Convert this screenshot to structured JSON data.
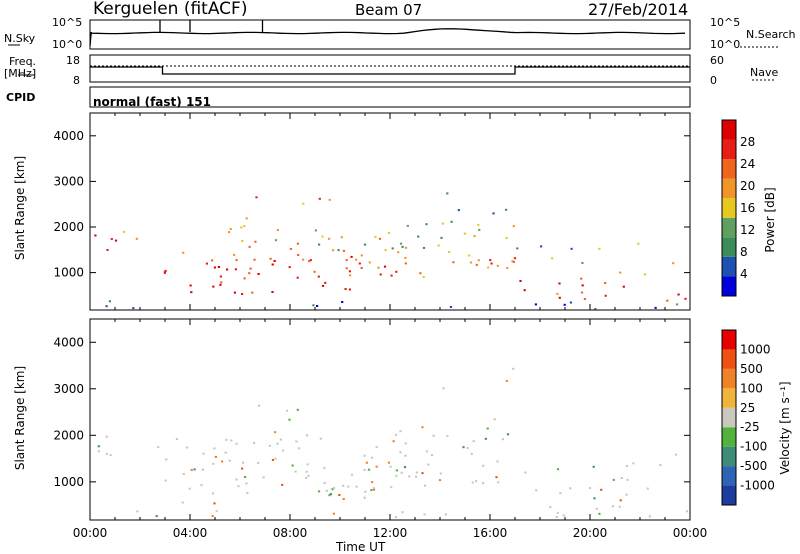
{
  "header": {
    "station": "Kerguelen (fitACF)",
    "beam": "Beam 07",
    "date": "27/Feb/2014"
  },
  "panels": {
    "nsky": {
      "label": "N.Sky",
      "ticks": [
        "10^5",
        "10^0"
      ],
      "right_label": "N.Search",
      "right_ticks": [
        "10^5",
        "10^0"
      ]
    },
    "freq": {
      "label_line1": "Freq.",
      "label_line2": "[MHz]",
      "ticks": [
        "18",
        "8"
      ],
      "right_label": "Nave",
      "right_ticks": [
        "60",
        "0"
      ]
    },
    "cpid": {
      "label": "CPID",
      "value": "normal (fast) 151"
    }
  },
  "colors": {
    "power": [
      "#0000dd",
      "#1e50b4",
      "#3c8c5a",
      "#5fa05f",
      "#e6c81e",
      "#f09628",
      "#f0641e",
      "#e61e14",
      "#dc0000"
    ],
    "velocity": [
      "#1e3ca0",
      "#2d64b4",
      "#3c8c78",
      "#50b43c",
      "#c8c8be",
      "#f0b43c",
      "#f08228",
      "#f05014",
      "#e60000"
    ]
  },
  "chart_data": [
    {
      "type": "heatmap",
      "name": "power",
      "ylabel": "Slant Range [km]",
      "yticks": [
        "1000",
        "2000",
        "3000",
        "4000"
      ],
      "xticks": [
        "00:00",
        "04:00",
        "08:00",
        "12:00",
        "16:00",
        "20:00",
        "00:00"
      ],
      "xlim": [
        0,
        24
      ],
      "ylim": [
        180,
        4500
      ],
      "colorbar": {
        "label": "Power [dB]",
        "ticks": [
          "4",
          "8",
          "12",
          "16",
          "20",
          "24",
          "28"
        ],
        "range": [
          0,
          32
        ]
      }
    },
    {
      "type": "heatmap",
      "name": "velocity",
      "ylabel": "Slant Range [km]",
      "yticks": [
        "1000",
        "2000",
        "3000",
        "4000"
      ],
      "xticks": [
        "00:00",
        "04:00",
        "08:00",
        "12:00",
        "16:00",
        "20:00",
        "00:00"
      ],
      "xlabel": "Time UT",
      "xlim": [
        0,
        24
      ],
      "ylim": [
        180,
        4500
      ],
      "colorbar": {
        "label": "Velocity [m s⁻¹]",
        "ticks": [
          "1000",
          "500",
          "100",
          "25",
          "-25",
          "-100",
          "-500",
          "-1000"
        ]
      }
    }
  ]
}
